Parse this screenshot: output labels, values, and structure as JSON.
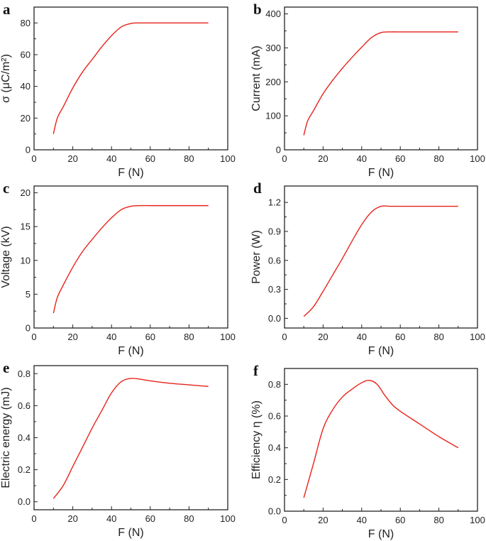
{
  "chart_data": [
    {
      "panel": "a",
      "type": "line",
      "xlabel": "F (N)",
      "ylabel": "σ (μC/m²)",
      "xlim": [
        0,
        100
      ],
      "ylim": [
        0,
        90
      ],
      "xticks": [
        0,
        20,
        40,
        60,
        80,
        100
      ],
      "yticks": [
        0,
        20,
        40,
        60,
        80
      ],
      "color": "#e8231a",
      "x": [
        10,
        12,
        15,
        20,
        25,
        30,
        35,
        40,
        45,
        50,
        55,
        60,
        70,
        80,
        90
      ],
      "y": [
        10,
        20,
        27,
        39,
        49,
        57,
        65,
        72,
        77.5,
        79.7,
        80,
        80,
        80,
        80,
        80
      ]
    },
    {
      "panel": "b",
      "type": "line",
      "xlabel": "F (N)",
      "ylabel": "Current (mA)",
      "xlim": [
        0,
        100
      ],
      "ylim": [
        0,
        420
      ],
      "xticks": [
        0,
        20,
        40,
        60,
        80,
        100
      ],
      "yticks": [
        0,
        100,
        200,
        300,
        400
      ],
      "color": "#e8231a",
      "x": [
        10,
        12,
        15,
        20,
        25,
        30,
        35,
        40,
        45,
        50,
        55,
        60,
        70,
        80,
        90
      ],
      "y": [
        43,
        85,
        115,
        165,
        205,
        240,
        272,
        302,
        330,
        345,
        347,
        347,
        347,
        347,
        347
      ]
    },
    {
      "panel": "c",
      "type": "line",
      "xlabel": "F (N)",
      "ylabel": "Voltage (kV)",
      "xlim": [
        0,
        100
      ],
      "ylim": [
        0,
        21
      ],
      "xticks": [
        0,
        20,
        40,
        60,
        80,
        100
      ],
      "yticks": [
        0,
        5,
        10,
        15,
        20
      ],
      "color": "#e8231a",
      "x": [
        10,
        12,
        15,
        20,
        25,
        30,
        35,
        40,
        45,
        50,
        55,
        60,
        70,
        80,
        90
      ],
      "y": [
        2.2,
        4.5,
        6.3,
        9,
        11.3,
        13.1,
        14.8,
        16.3,
        17.5,
        18,
        18.1,
        18.1,
        18.1,
        18.1,
        18.1
      ]
    },
    {
      "panel": "d",
      "type": "line",
      "xlabel": "F (N)",
      "ylabel": "Power (W)",
      "xlim": [
        0,
        100
      ],
      "ylim": [
        -0.1,
        1.37
      ],
      "xticks": [
        0,
        20,
        40,
        60,
        80,
        100
      ],
      "yticks": [
        0.0,
        0.3,
        0.6,
        0.9,
        1.2
      ],
      "ytick_labels": [
        "0.0",
        "0.3",
        "0.6",
        "0.9",
        "1.2"
      ],
      "color": "#e8231a",
      "x": [
        10,
        15,
        20,
        25,
        30,
        35,
        40,
        45,
        50,
        55,
        60,
        70,
        80,
        90
      ],
      "y": [
        0.02,
        0.12,
        0.28,
        0.45,
        0.62,
        0.8,
        0.97,
        1.1,
        1.16,
        1.16,
        1.16,
        1.16,
        1.16,
        1.16
      ]
    },
    {
      "panel": "e",
      "type": "line",
      "xlabel": "F (N)",
      "ylabel": "Electric energy (mJ)",
      "xlim": [
        0,
        100
      ],
      "ylim": [
        -0.05,
        0.85
      ],
      "xticks": [
        0,
        20,
        40,
        60,
        80,
        100
      ],
      "yticks": [
        0.0,
        0.2,
        0.4,
        0.6,
        0.8
      ],
      "ytick_labels": [
        "0.0",
        "0.2",
        "0.4",
        "0.6",
        "0.8"
      ],
      "color": "#e8231a",
      "x": [
        10,
        15,
        20,
        25,
        30,
        35,
        40,
        45,
        50,
        55,
        60,
        70,
        80,
        90
      ],
      "y": [
        0.02,
        0.1,
        0.22,
        0.34,
        0.46,
        0.57,
        0.68,
        0.75,
        0.77,
        0.765,
        0.755,
        0.74,
        0.73,
        0.72
      ]
    },
    {
      "panel": "f",
      "type": "line",
      "xlabel": "F (N)",
      "ylabel": "Efficiency η (%)",
      "xlim": [
        0,
        100
      ],
      "ylim": [
        0,
        0.9
      ],
      "xticks": [
        0,
        20,
        40,
        60,
        80,
        100
      ],
      "yticks": [
        0.0,
        0.2,
        0.4,
        0.6,
        0.8
      ],
      "ytick_labels": [
        "0.0",
        "0.2",
        "0.4",
        "0.6",
        "0.8"
      ],
      "color": "#e8231a",
      "x": [
        10,
        15,
        20,
        25,
        30,
        35,
        40,
        44,
        48,
        52,
        56,
        60,
        70,
        80,
        90
      ],
      "y": [
        0.085,
        0.3,
        0.52,
        0.64,
        0.72,
        0.77,
        0.81,
        0.825,
        0.8,
        0.73,
        0.67,
        0.63,
        0.55,
        0.47,
        0.4
      ]
    }
  ]
}
